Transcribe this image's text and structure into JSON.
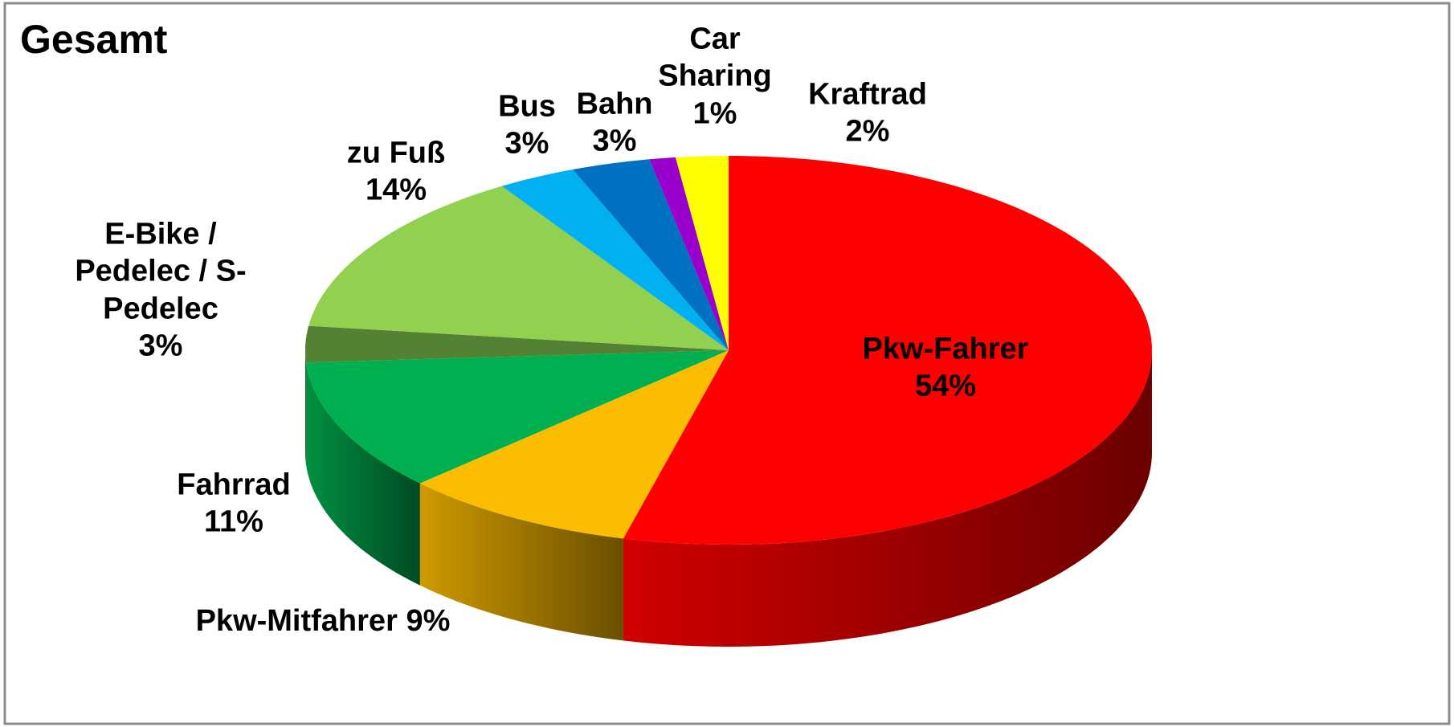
{
  "chart_data": {
    "type": "pie3d",
    "title": "Gesamt",
    "categories": [
      "Pkw-Fahrer",
      "Pkw-Mitfahrer",
      "Fahrrad",
      "E-Bike / Pedelec / S-Pedelec",
      "zu Fuß",
      "Bus",
      "Bahn",
      "Car Sharing",
      "Kraftrad"
    ],
    "values": [
      54,
      9,
      11,
      3,
      14,
      3,
      3,
      1,
      2
    ],
    "value_labels": [
      "54%",
      "9%",
      "11%",
      "3%",
      "14%",
      "3%",
      "3%",
      "1%",
      "2%"
    ],
    "colors": [
      "#ff0000",
      "#fcbc00",
      "#00b050",
      "#548235",
      "#92d050",
      "#00b0f0",
      "#0070c0",
      "#9900cc",
      "#ffff00"
    ]
  }
}
